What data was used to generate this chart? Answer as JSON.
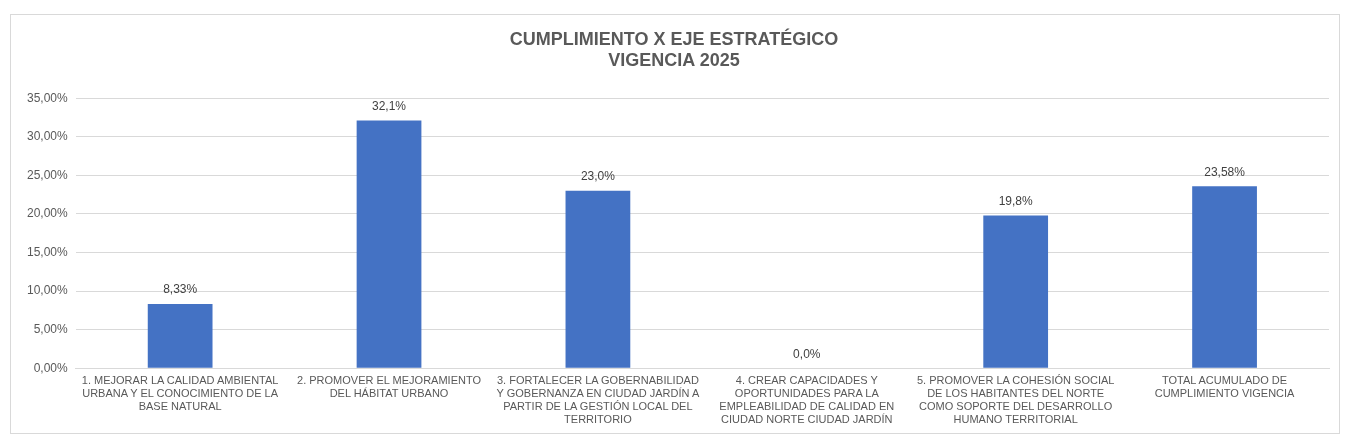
{
  "chart_data": {
    "type": "bar",
    "title": "CUMPLIMIENTO X EJE ESTRATÉGICO\nVIGENCIA 2025",
    "categories": [
      "1. MEJORAR LA CALIDAD AMBIENTAL URBANA Y EL CONOCIMIENTO DE LA BASE NATURAL",
      "2. PROMOVER EL MEJORAMIENTO DEL HÁBITAT URBANO",
      "3. FORTALECER LA GOBERNABILIDAD Y GOBERNANZA EN CIUDAD JARDÍN A PARTIR DE LA GESTIÓN LOCAL DEL TERRITORIO",
      "4. CREAR CAPACIDADES Y OPORTUNIDADES PARA LA EMPLEABILIDAD DE CALIDAD EN CIUDAD NORTE CIUDAD JARDÍN",
      "5. PROMOVER LA COHESIÓN SOCIAL DE LOS HABITANTES DEL NORTE COMO SOPORTE DEL DESARROLLO HUMANO TERRITORIAL",
      "TOTAL ACUMULADO DE CUMPLIMIENTO VIGENCIA"
    ],
    "values": [
      8.33,
      32.1,
      23.0,
      0.0,
      19.8,
      23.58
    ],
    "value_labels": [
      "8,33%",
      "32,1%",
      "23,0%",
      "0,0%",
      "19,8%",
      "23,58%"
    ],
    "color": "#4472c4",
    "ylim": [
      0,
      35
    ],
    "yticks": [
      {
        "value": 0,
        "label": "0,00%"
      },
      {
        "value": 5,
        "label": "5,00%"
      },
      {
        "value": 10,
        "label": "10,00%"
      },
      {
        "value": 15,
        "label": "15,00%"
      },
      {
        "value": 20,
        "label": "20,00%"
      },
      {
        "value": 25,
        "label": "25,00%"
      },
      {
        "value": 30,
        "label": "30,00%"
      },
      {
        "value": 35,
        "label": "35,00%"
      }
    ],
    "grid": "y",
    "legend": false
  }
}
